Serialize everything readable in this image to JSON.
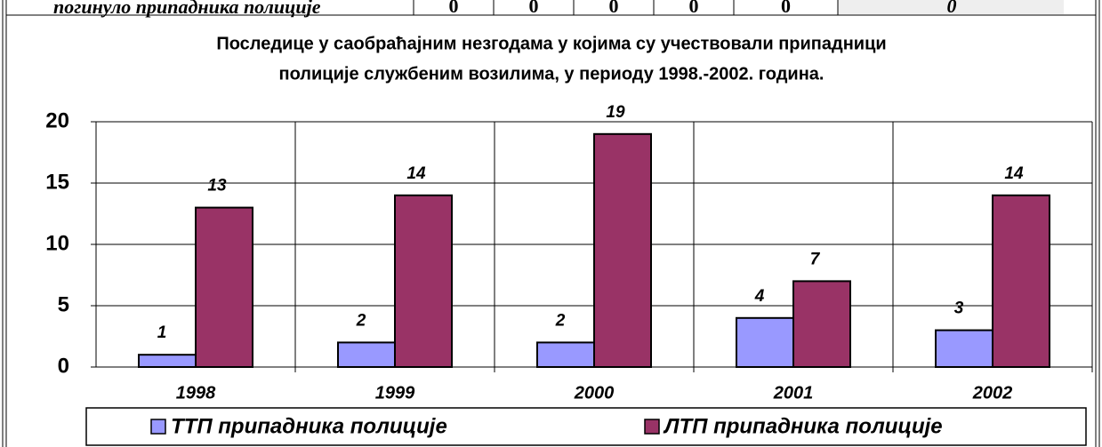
{
  "header_row": {
    "label": "погинуло припадника полиције",
    "cells": [
      0,
      0,
      0,
      0,
      0,
      0
    ]
  },
  "chart_data": {
    "type": "bar",
    "title": "Последице у саобраћајним незгодама у којима су учествовали припадници полиције службеним возилима, у периоду 1998.-2002. година.",
    "title_lines": [
      "Последице у саобраћајним незгодама у којима су учествовали припадници",
      "полиције службеним возилима, у периоду 1998.-2002. година."
    ],
    "categories": [
      "1998",
      "1999",
      "2000",
      "2001",
      "2002"
    ],
    "series": [
      {
        "name": "ТТП припадника полиције",
        "color": "#9999ff",
        "values": [
          1,
          2,
          2,
          4,
          3
        ]
      },
      {
        "name": "ЛТП припадника полиције",
        "color": "#993366",
        "values": [
          13,
          14,
          19,
          7,
          14
        ]
      }
    ],
    "ylim": [
      0,
      20
    ],
    "yticks": [
      0,
      5,
      10,
      15,
      20
    ],
    "grid": true,
    "legend": "bottom"
  }
}
